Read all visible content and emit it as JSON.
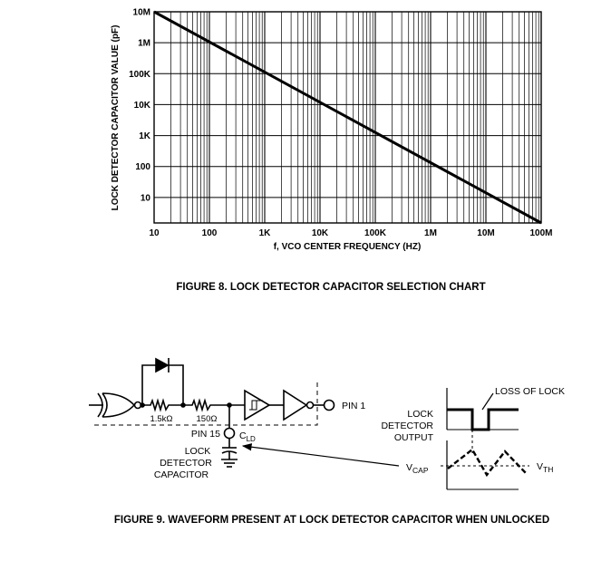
{
  "chart_data": {
    "type": "line",
    "title": "",
    "xlabel": "f, VCO CENTER FREQUENCY (HZ)",
    "ylabel": "LOCK DETECTOR CAPACITOR VALUE (pF)",
    "x_scale": "log",
    "y_scale": "log",
    "xlim": [
      10,
      100000000
    ],
    "ylim": [
      1.5,
      10000000
    ],
    "grid": true,
    "x_ticks": [
      {
        "value": 10,
        "label": "10"
      },
      {
        "value": 100,
        "label": "100"
      },
      {
        "value": 1000,
        "label": "1K"
      },
      {
        "value": 10000,
        "label": "10K"
      },
      {
        "value": 100000,
        "label": "100K"
      },
      {
        "value": 1000000,
        "label": "1M"
      },
      {
        "value": 10000000,
        "label": "10M"
      },
      {
        "value": 100000000,
        "label": "100M"
      }
    ],
    "y_ticks": [
      {
        "value": 10,
        "label": "10"
      },
      {
        "value": 100,
        "label": "100"
      },
      {
        "value": 1000,
        "label": "1K"
      },
      {
        "value": 10000,
        "label": "10K"
      },
      {
        "value": 100000,
        "label": "100K"
      },
      {
        "value": 1000000,
        "label": "1M"
      },
      {
        "value": 10000000,
        "label": "10M"
      }
    ],
    "series": [
      {
        "x": [
          10,
          100000000
        ],
        "y": [
          10000000,
          1.5
        ]
      }
    ]
  },
  "figure8_caption": "FIGURE 8.  LOCK DETECTOR CAPACITOR SELECTION CHART",
  "figure9": {
    "caption": "FIGURE 9.  WAVEFORM PRESENT AT LOCK DETECTOR CAPACITOR WHEN UNLOCKED",
    "r1": "1.5kΩ",
    "r2": "150Ω",
    "pin1": "PIN 1",
    "pin15": "PIN 15",
    "cld_main": "C",
    "cld_sub": "LD",
    "cap_label_lines": [
      "LOCK",
      "DETECTOR",
      "CAPACITOR"
    ],
    "output_label_lines": [
      "LOCK",
      "DETECTOR",
      "OUTPUT"
    ],
    "loss_of_lock": "LOSS OF LOCK",
    "vcap_main": "V",
    "vcap_sub": "CAP",
    "vth_main": "V",
    "vth_sub": "TH"
  }
}
